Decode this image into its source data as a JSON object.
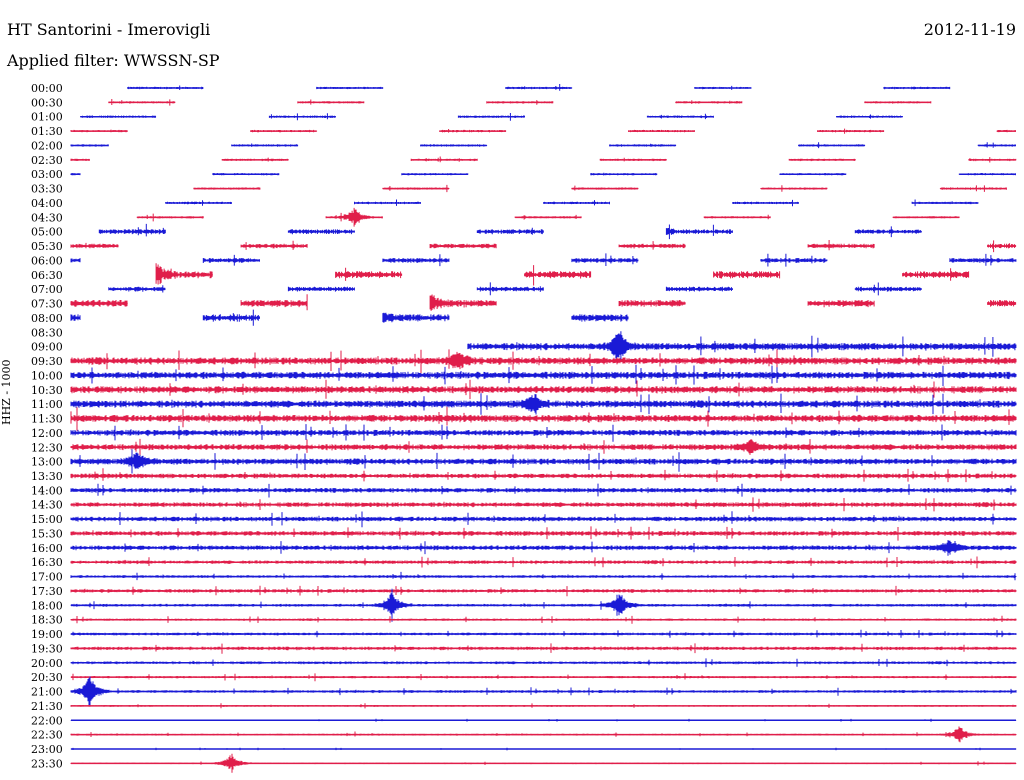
{
  "header": {
    "station": "HT Santorini - Imerovigli",
    "date": "2012-11-19",
    "filter": "Applied filter: WWSSN-SP"
  },
  "axis": {
    "ylabel": "HHZ - 1000"
  },
  "colors": {
    "even_hour": "#1a1ad6",
    "half_hour": "#e01e4a"
  },
  "chart_data": {
    "type": "line",
    "title": "HT Santorini - Imerovigli",
    "subtitle": "Applied filter: WWSSN-SP",
    "ylabel": "HHZ - 1000",
    "date": "2012-11-19",
    "rows": [
      {
        "time": "00:00",
        "color": "blue",
        "amp": 1,
        "segments": [
          [
            0.06,
            0.14
          ],
          [
            0.26,
            0.33
          ],
          [
            0.46,
            0.53
          ],
          [
            0.66,
            0.72
          ],
          [
            0.86,
            0.93
          ]
        ]
      },
      {
        "time": "00:30",
        "color": "red",
        "amp": 1,
        "segments": [
          [
            0.04,
            0.11
          ],
          [
            0.24,
            0.31
          ],
          [
            0.44,
            0.51
          ],
          [
            0.64,
            0.71
          ],
          [
            0.84,
            0.91
          ]
        ]
      },
      {
        "time": "01:00",
        "color": "blue",
        "amp": 1,
        "segments": [
          [
            0.01,
            0.09
          ],
          [
            0.21,
            0.28
          ],
          [
            0.41,
            0.48
          ],
          [
            0.61,
            0.68
          ],
          [
            0.81,
            0.88
          ]
        ]
      },
      {
        "time": "01:30",
        "color": "red",
        "amp": 1,
        "segments": [
          [
            0.0,
            0.06
          ],
          [
            0.19,
            0.26
          ],
          [
            0.39,
            0.46
          ],
          [
            0.59,
            0.66
          ],
          [
            0.79,
            0.86
          ],
          [
            0.98,
            1.0
          ]
        ]
      },
      {
        "time": "02:00",
        "color": "blue",
        "amp": 1,
        "segments": [
          [
            0.0,
            0.04
          ],
          [
            0.17,
            0.24
          ],
          [
            0.37,
            0.44
          ],
          [
            0.57,
            0.64
          ],
          [
            0.77,
            0.84
          ],
          [
            0.96,
            1.0
          ]
        ]
      },
      {
        "time": "02:30",
        "color": "red",
        "amp": 1,
        "segments": [
          [
            0.0,
            0.02
          ],
          [
            0.16,
            0.23
          ],
          [
            0.36,
            0.43
          ],
          [
            0.56,
            0.63
          ],
          [
            0.76,
            0.83
          ],
          [
            0.95,
            1.0
          ]
        ]
      },
      {
        "time": "03:00",
        "color": "blue",
        "amp": 1,
        "segments": [
          [
            0.0,
            0.01
          ],
          [
            0.15,
            0.22
          ],
          [
            0.35,
            0.42
          ],
          [
            0.55,
            0.62
          ],
          [
            0.75,
            0.82
          ],
          [
            0.94,
            1.0
          ]
        ]
      },
      {
        "time": "03:30",
        "color": "red",
        "amp": 1,
        "segments": [
          [
            0.13,
            0.2
          ],
          [
            0.33,
            0.4
          ],
          [
            0.53,
            0.6
          ],
          [
            0.73,
            0.8
          ],
          [
            0.92,
            0.99
          ]
        ]
      },
      {
        "time": "04:00",
        "color": "blue",
        "amp": 1,
        "segments": [
          [
            0.1,
            0.17
          ],
          [
            0.3,
            0.37
          ],
          [
            0.5,
            0.57
          ],
          [
            0.7,
            0.77
          ],
          [
            0.89,
            0.96
          ]
        ]
      },
      {
        "time": "04:30",
        "color": "red",
        "amp": 1,
        "segments": [
          [
            0.07,
            0.14
          ],
          [
            0.27,
            0.33
          ],
          [
            0.47,
            0.54
          ],
          [
            0.67,
            0.74
          ],
          [
            0.87,
            0.94
          ]
        ]
      },
      {
        "time": "05:00",
        "color": "blue",
        "amp": 2,
        "segments": [
          [
            0.03,
            0.1
          ],
          [
            0.23,
            0.3
          ],
          [
            0.43,
            0.5
          ],
          [
            0.63,
            0.7
          ],
          [
            0.83,
            0.9
          ]
        ]
      },
      {
        "time": "05:30",
        "color": "red",
        "amp": 2,
        "segments": [
          [
            0.0,
            0.05
          ],
          [
            0.18,
            0.25
          ],
          [
            0.38,
            0.45
          ],
          [
            0.58,
            0.65
          ],
          [
            0.78,
            0.85
          ],
          [
            0.97,
            1.0
          ]
        ]
      },
      {
        "time": "06:00",
        "color": "blue",
        "amp": 2,
        "segments": [
          [
            0.0,
            0.01
          ],
          [
            0.14,
            0.2
          ],
          [
            0.33,
            0.4
          ],
          [
            0.53,
            0.6
          ],
          [
            0.73,
            0.8
          ],
          [
            0.93,
            1.0
          ]
        ]
      },
      {
        "time": "06:30",
        "color": "red",
        "amp": 3,
        "segments": [
          [
            0.09,
            0.15
          ],
          [
            0.28,
            0.35
          ],
          [
            0.48,
            0.55
          ],
          [
            0.68,
            0.75
          ],
          [
            0.88,
            0.95
          ]
        ]
      },
      {
        "time": "07:00",
        "color": "blue",
        "amp": 2,
        "segments": [
          [
            0.04,
            0.1
          ],
          [
            0.23,
            0.3
          ],
          [
            0.43,
            0.5
          ],
          [
            0.63,
            0.7
          ],
          [
            0.83,
            0.9
          ]
        ]
      },
      {
        "time": "07:30",
        "color": "red",
        "amp": 3,
        "segments": [
          [
            0.0,
            0.06
          ],
          [
            0.18,
            0.25
          ],
          [
            0.38,
            0.45
          ],
          [
            0.58,
            0.65
          ],
          [
            0.78,
            0.85
          ],
          [
            0.97,
            1.0
          ]
        ]
      },
      {
        "time": "08:00",
        "color": "blue",
        "amp": 3,
        "segments": [
          [
            0.0,
            0.01
          ],
          [
            0.14,
            0.2
          ],
          [
            0.33,
            0.4
          ],
          [
            0.53,
            0.59
          ]
        ]
      },
      {
        "time": "08:30",
        "color": "red",
        "amp": 0,
        "segments": []
      },
      {
        "time": "09:00",
        "color": "blue",
        "amp": 3,
        "segments": [
          [
            0.42,
            1.0
          ]
        ]
      },
      {
        "time": "09:30",
        "color": "red",
        "amp": 3,
        "segments": [
          [
            0.0,
            1.0
          ]
        ]
      },
      {
        "time": "10:00",
        "color": "blue",
        "amp": 3,
        "segments": [
          [
            0.0,
            1.0
          ]
        ]
      },
      {
        "time": "10:30",
        "color": "red",
        "amp": 3,
        "segments": [
          [
            0.0,
            1.0
          ]
        ]
      },
      {
        "time": "11:00",
        "color": "blue",
        "amp": 3,
        "segments": [
          [
            0.0,
            1.0
          ]
        ]
      },
      {
        "time": "11:30",
        "color": "red",
        "amp": 3,
        "segments": [
          [
            0.0,
            1.0
          ]
        ]
      },
      {
        "time": "12:00",
        "color": "blue",
        "amp": 2.5,
        "segments": [
          [
            0.0,
            1.0
          ]
        ]
      },
      {
        "time": "12:30",
        "color": "red",
        "amp": 2.5,
        "segments": [
          [
            0.0,
            1.0
          ]
        ]
      },
      {
        "time": "13:00",
        "color": "blue",
        "amp": 2.5,
        "segments": [
          [
            0.0,
            1.0
          ]
        ]
      },
      {
        "time": "13:30",
        "color": "red",
        "amp": 2,
        "segments": [
          [
            0.0,
            1.0
          ]
        ]
      },
      {
        "time": "14:00",
        "color": "blue",
        "amp": 2,
        "segments": [
          [
            0.0,
            1.0
          ]
        ]
      },
      {
        "time": "14:30",
        "color": "red",
        "amp": 2,
        "segments": [
          [
            0.0,
            1.0
          ]
        ]
      },
      {
        "time": "15:00",
        "color": "blue",
        "amp": 2,
        "segments": [
          [
            0.0,
            1.0
          ]
        ]
      },
      {
        "time": "15:30",
        "color": "red",
        "amp": 2,
        "segments": [
          [
            0.0,
            1.0
          ]
        ]
      },
      {
        "time": "16:00",
        "color": "blue",
        "amp": 2,
        "segments": [
          [
            0.0,
            1.0
          ]
        ]
      },
      {
        "time": "16:30",
        "color": "red",
        "amp": 1.5,
        "segments": [
          [
            0.0,
            1.0
          ]
        ]
      },
      {
        "time": "17:00",
        "color": "blue",
        "amp": 1.2,
        "segments": [
          [
            0.0,
            1.0
          ]
        ]
      },
      {
        "time": "17:30",
        "color": "red",
        "amp": 1.5,
        "segments": [
          [
            0.0,
            1.0
          ]
        ]
      },
      {
        "time": "18:00",
        "color": "blue",
        "amp": 1.2,
        "segments": [
          [
            0.0,
            1.0
          ]
        ]
      },
      {
        "time": "18:30",
        "color": "red",
        "amp": 1,
        "segments": [
          [
            0.0,
            1.0
          ]
        ]
      },
      {
        "time": "19:00",
        "color": "blue",
        "amp": 1.2,
        "segments": [
          [
            0.0,
            1.0
          ]
        ]
      },
      {
        "time": "19:30",
        "color": "red",
        "amp": 1.5,
        "segments": [
          [
            0.0,
            1.0
          ]
        ]
      },
      {
        "time": "20:00",
        "color": "blue",
        "amp": 1.2,
        "segments": [
          [
            0.0,
            1.0
          ]
        ]
      },
      {
        "time": "20:30",
        "color": "red",
        "amp": 1,
        "segments": [
          [
            0.0,
            1.0
          ]
        ]
      },
      {
        "time": "21:00",
        "color": "blue",
        "amp": 1.2,
        "segments": [
          [
            0.0,
            1.0
          ]
        ]
      },
      {
        "time": "21:30",
        "color": "red",
        "amp": 0.8,
        "segments": [
          [
            0.0,
            1.0
          ]
        ]
      },
      {
        "time": "22:00",
        "color": "blue",
        "amp": 0.4,
        "segments": [
          [
            0.0,
            1.0
          ]
        ]
      },
      {
        "time": "22:30",
        "color": "red",
        "amp": 0.8,
        "segments": [
          [
            0.0,
            1.0
          ]
        ]
      },
      {
        "time": "23:00",
        "color": "blue",
        "amp": 0.4,
        "segments": [
          [
            0.0,
            1.0
          ]
        ]
      },
      {
        "time": "23:30",
        "color": "red",
        "amp": 0.6,
        "segments": [
          [
            0.0,
            1.0
          ]
        ]
      }
    ],
    "events": [
      {
        "time": "04:30",
        "x": 0.3,
        "amp": 8
      },
      {
        "time": "05:00",
        "x": 0.58,
        "amp": 14
      },
      {
        "time": "05:00",
        "x": 0.62,
        "amp": 10
      },
      {
        "time": "06:30",
        "x": 0.09,
        "amp": 10
      },
      {
        "time": "07:30",
        "x": 0.38,
        "amp": 10
      },
      {
        "time": "08:00",
        "x": 0.32,
        "amp": 16
      },
      {
        "time": "09:00",
        "x": 0.58,
        "amp": 14
      },
      {
        "time": "09:30",
        "x": 0.41,
        "amp": 8
      },
      {
        "time": "11:00",
        "x": 0.49,
        "amp": 8
      },
      {
        "time": "12:30",
        "x": 0.72,
        "amp": 8
      },
      {
        "time": "13:00",
        "x": 0.07,
        "amp": 8
      },
      {
        "time": "16:00",
        "x": 0.93,
        "amp": 8
      },
      {
        "time": "18:00",
        "x": 0.34,
        "amp": 12
      },
      {
        "time": "18:00",
        "x": 0.58,
        "amp": 12
      },
      {
        "time": "21:00",
        "x": 0.02,
        "amp": 14
      },
      {
        "time": "22:30",
        "x": 0.94,
        "amp": 7
      },
      {
        "time": "23:30",
        "x": 0.17,
        "amp": 9
      }
    ]
  }
}
